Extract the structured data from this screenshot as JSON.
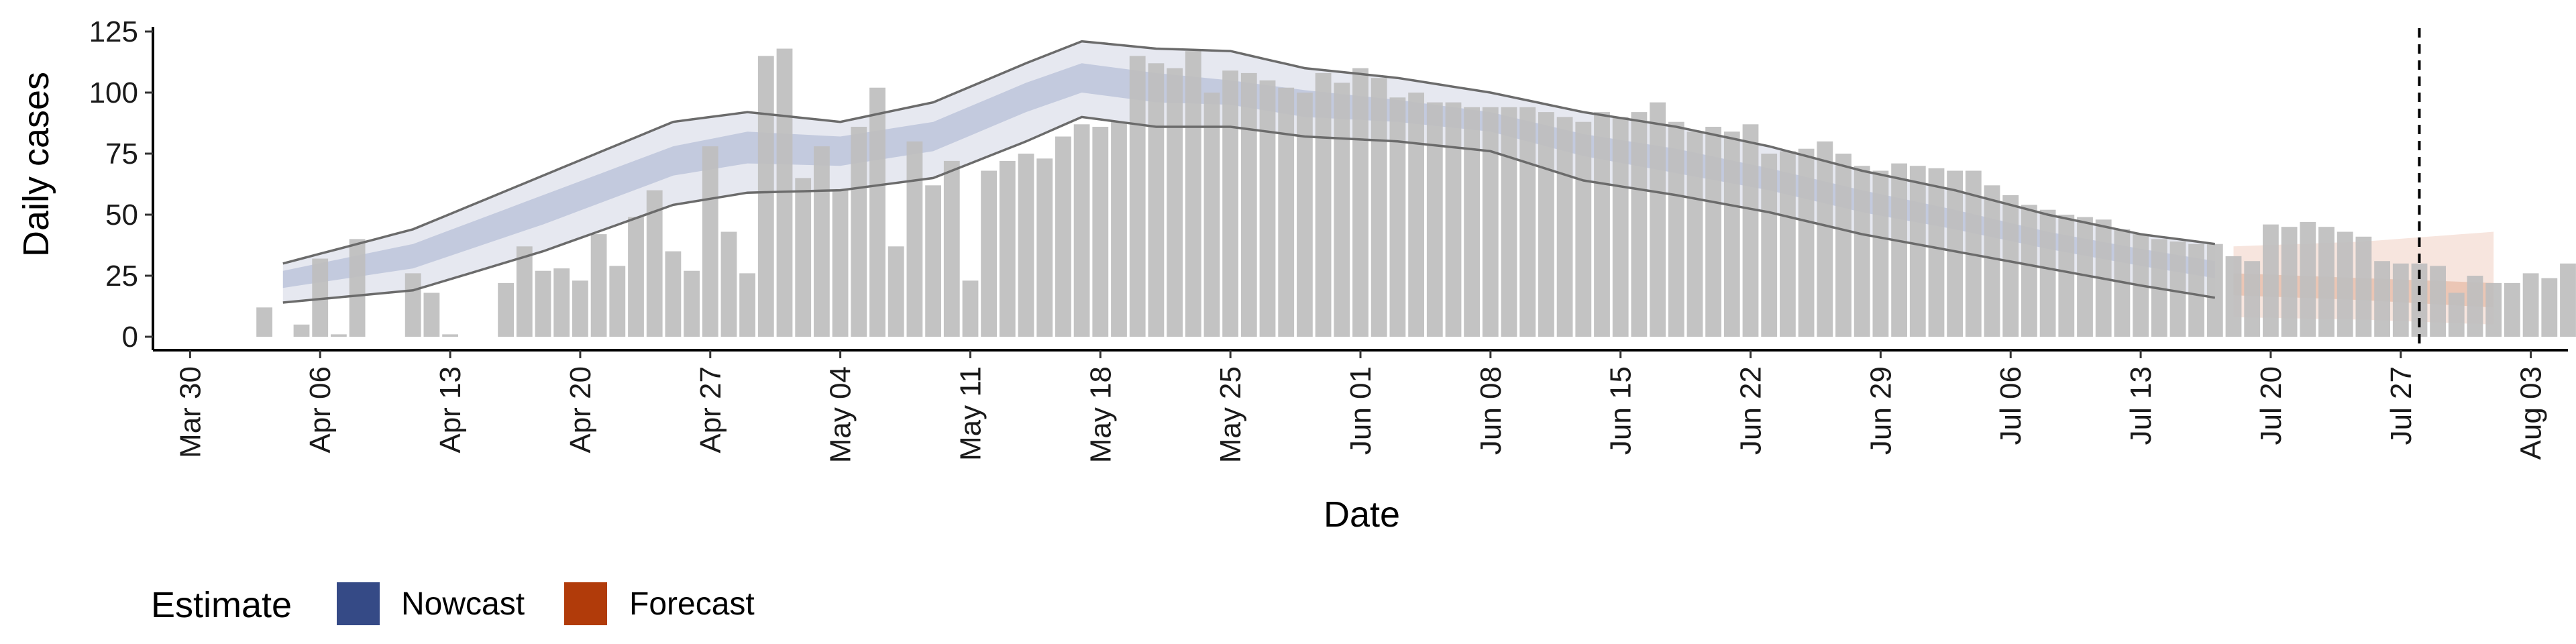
{
  "chart_data": {
    "type": "bar",
    "title": "",
    "xlabel": "Date",
    "ylabel": "Daily cases",
    "ylim": [
      0,
      130
    ],
    "y_ticks": [
      0,
      25,
      50,
      75,
      100,
      125
    ],
    "x_tick_labels": [
      "Mar 30",
      "Apr 06",
      "Apr 13",
      "Apr 20",
      "Apr 27",
      "May 04",
      "May 11",
      "May 18",
      "May 25",
      "Jun 01",
      "Jun 08",
      "Jun 15",
      "Jun 22",
      "Jun 29",
      "Jul 06",
      "Jul 13",
      "Jul 20",
      "Jul 27",
      "Aug 03"
    ],
    "x_range_days": {
      "start": "Mar 28",
      "end": "Aug 05"
    },
    "bar_start_date": "Apr 03",
    "daily_cases": [
      12,
      0,
      5,
      32,
      1,
      40,
      0,
      0,
      26,
      18,
      1,
      0,
      0,
      22,
      37,
      27,
      28,
      23,
      42,
      29,
      49,
      60,
      35,
      27,
      78,
      43,
      26,
      115,
      118,
      65,
      78,
      60,
      86,
      102,
      37,
      80,
      62,
      72,
      23,
      68,
      72,
      75,
      73,
      82,
      87,
      86,
      88,
      115,
      112,
      110,
      117,
      100,
      109,
      108,
      105,
      102,
      100,
      108,
      104,
      110,
      106,
      98,
      100,
      96,
      96,
      94,
      94,
      94,
      94,
      92,
      90,
      88,
      92,
      90,
      92,
      96,
      88,
      84,
      86,
      84,
      87,
      75,
      76,
      77,
      80,
      75,
      70,
      68,
      71,
      70,
      69,
      68,
      68,
      62,
      58,
      54,
      52,
      50,
      49,
      48,
      44,
      42,
      40,
      39,
      38,
      38,
      33,
      31,
      46,
      45,
      47,
      45,
      43,
      41,
      31,
      30,
      30,
      29,
      18,
      25,
      22,
      22,
      26,
      24,
      30,
      27,
      25,
      22,
      26
    ],
    "nowcast_start": "Apr 04",
    "nowcast_end": "Jul 17",
    "nowcast_knots": [
      {
        "t": 0,
        "lo90": 14,
        "lo50": 20,
        "med": 24,
        "hi50": 27,
        "hi90": 30
      },
      {
        "t": 7,
        "lo90": 19,
        "lo50": 28,
        "med": 33,
        "hi50": 38,
        "hi90": 44
      },
      {
        "t": 14,
        "lo90": 35,
        "lo50": 46,
        "med": 52,
        "hi50": 58,
        "hi90": 66
      },
      {
        "t": 21,
        "lo90": 54,
        "lo50": 66,
        "med": 72,
        "hi50": 78,
        "hi90": 88
      },
      {
        "t": 25,
        "lo90": 59,
        "lo50": 71,
        "med": 78,
        "hi50": 84,
        "hi90": 92
      },
      {
        "t": 30,
        "lo90": 60,
        "lo50": 70,
        "med": 76,
        "hi50": 82,
        "hi90": 88
      },
      {
        "t": 35,
        "lo90": 65,
        "lo50": 76,
        "med": 82,
        "hi50": 88,
        "hi90": 96
      },
      {
        "t": 40,
        "lo90": 80,
        "lo50": 92,
        "med": 98,
        "hi50": 104,
        "hi90": 112
      },
      {
        "t": 43,
        "lo90": 90,
        "lo50": 100,
        "med": 106,
        "hi50": 112,
        "hi90": 121
      },
      {
        "t": 47,
        "lo90": 86,
        "lo50": 96,
        "med": 102,
        "hi50": 108,
        "hi90": 118
      },
      {
        "t": 51,
        "lo90": 86,
        "lo50": 95,
        "med": 100,
        "hi50": 105,
        "hi90": 117
      },
      {
        "t": 55,
        "lo90": 82,
        "lo50": 90,
        "med": 96,
        "hi50": 101,
        "hi90": 110
      },
      {
        "t": 60,
        "lo90": 80,
        "lo50": 88,
        "med": 92,
        "hi50": 97,
        "hi90": 106
      },
      {
        "t": 65,
        "lo90": 76,
        "lo50": 84,
        "med": 88,
        "hi50": 92,
        "hi90": 100
      },
      {
        "t": 70,
        "lo90": 64,
        "lo50": 74,
        "med": 78,
        "hi50": 83,
        "hi90": 92
      },
      {
        "t": 75,
        "lo90": 58,
        "lo50": 67,
        "med": 72,
        "hi50": 77,
        "hi90": 86
      },
      {
        "t": 80,
        "lo90": 51,
        "lo50": 60,
        "med": 65,
        "hi50": 69,
        "hi90": 78
      },
      {
        "t": 85,
        "lo90": 42,
        "lo50": 51,
        "med": 55,
        "hi50": 60,
        "hi90": 68
      },
      {
        "t": 90,
        "lo90": 35,
        "lo50": 44,
        "med": 48,
        "hi50": 52,
        "hi90": 60
      },
      {
        "t": 95,
        "lo90": 28,
        "lo50": 36,
        "med": 40,
        "hi50": 43,
        "hi90": 50
      },
      {
        "t": 100,
        "lo90": 21,
        "lo50": 29,
        "med": 33,
        "hi50": 36,
        "hi90": 42
      },
      {
        "t": 104,
        "lo90": 16,
        "lo50": 24,
        "med": 28,
        "hi50": 31,
        "hi90": 38
      }
    ],
    "forecast_start": "Jul 18",
    "forecast_end": "Aug 01",
    "forecast_knots": [
      {
        "t": 0,
        "lo90": 8,
        "lo50": 17,
        "med": 22,
        "hi50": 26,
        "hi90": 37
      },
      {
        "t": 7,
        "lo90": 7,
        "lo50": 15,
        "med": 20,
        "hi50": 24,
        "hi90": 39
      },
      {
        "t": 14,
        "lo90": 5,
        "lo50": 12,
        "med": 17,
        "hi50": 22,
        "hi90": 43
      }
    ],
    "reference_line_date": "Jul 28",
    "legend": {
      "title": "Estimate",
      "placement": "bottom-left",
      "items": [
        {
          "label": "Nowcast",
          "color": "#354a86"
        },
        {
          "label": "Forecast",
          "color": "#b13b0a"
        }
      ]
    },
    "colors": {
      "bars": "#bebebe",
      "nowcast_outer": "#e6e8f0",
      "nowcast_inner": "#c3cade",
      "nowcast_line": "#6b6b6b",
      "forecast_outer": "#f7e5de",
      "forecast_inner": "#ebc6b5",
      "reference_line": "#000000"
    }
  }
}
